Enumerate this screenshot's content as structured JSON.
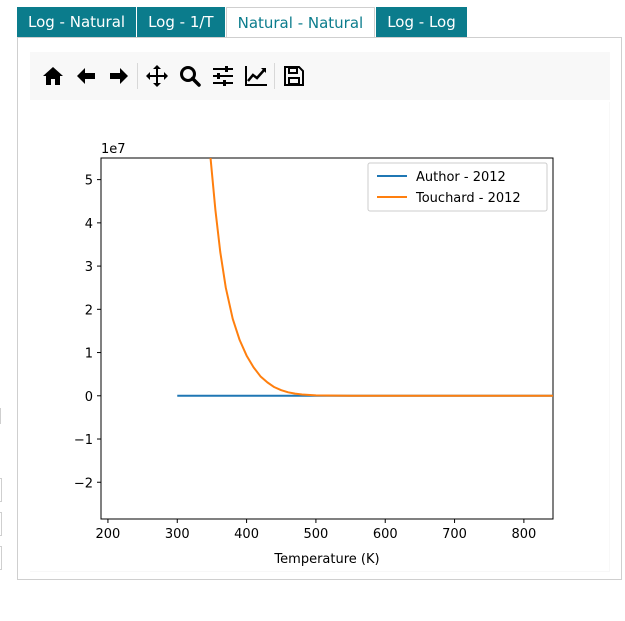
{
  "tabs": [
    {
      "label": "Log - Natural",
      "active": false
    },
    {
      "label": "Log - 1/T",
      "active": false
    },
    {
      "label": "Natural - Natural",
      "active": true
    },
    {
      "label": "Log - Log",
      "active": false
    }
  ],
  "toolbar": {
    "buttons": [
      "home-icon",
      "back-icon",
      "forward-icon",
      "pan-icon",
      "zoom-icon",
      "configure-subplots-icon",
      "edit-axis-icon",
      "save-icon"
    ]
  },
  "colors": {
    "tab_bg": "#0b7c8c",
    "series_author": "#1f77b4",
    "series_touchard": "#ff7f0e"
  },
  "chart_data": {
    "type": "line",
    "xlabel": "Temperature (K)",
    "ylabel": "",
    "offset_label": "1e7",
    "xlim": [
      190,
      842
    ],
    "ylim": [
      -2.85,
      5.5
    ],
    "scale_factor": 10000000,
    "x_ticks": [
      200,
      300,
      400,
      500,
      600,
      700,
      800
    ],
    "y_ticks": [
      -2,
      -1,
      0,
      1,
      2,
      3,
      4,
      5
    ],
    "legend_position": "top-right",
    "grid": false,
    "series": [
      {
        "name": "Author - 2012",
        "color": "#1f77b4",
        "x": [
          300,
          400,
          500,
          600,
          700,
          800,
          842
        ],
        "y": [
          0,
          0,
          0,
          0,
          0,
          0,
          0
        ]
      },
      {
        "name": "Touchard - 2012",
        "color": "#ff7f0e",
        "x": [
          348,
          355,
          362,
          370,
          380,
          390,
          400,
          410,
          420,
          430,
          440,
          450,
          460,
          470,
          480,
          500,
          550,
          600,
          700,
          842
        ],
        "y": [
          5.5,
          4.3,
          3.33,
          2.5,
          1.78,
          1.29,
          0.93,
          0.66,
          0.45,
          0.31,
          0.2,
          0.13,
          0.08,
          0.05,
          0.03,
          0.01,
          0.0,
          0.0,
          0.0,
          0.0
        ]
      }
    ]
  }
}
